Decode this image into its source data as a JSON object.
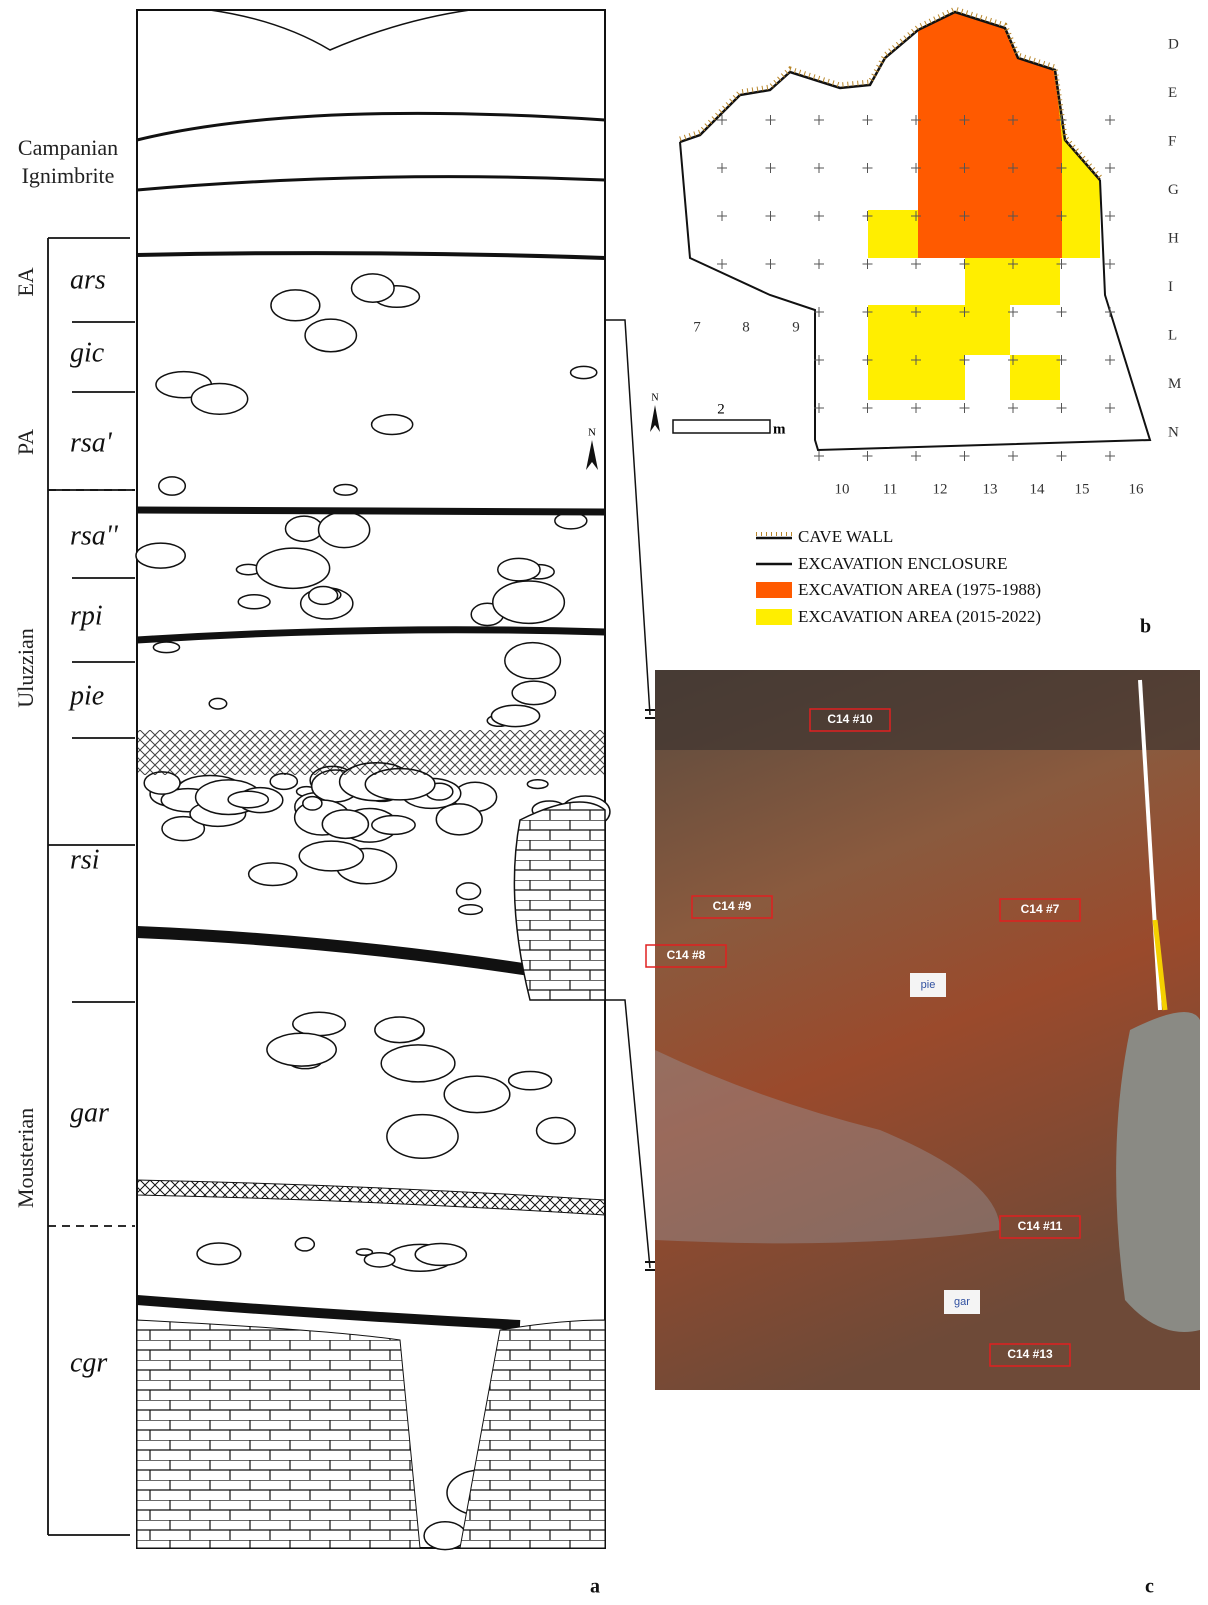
{
  "stratigraphy": {
    "panel_label": "a",
    "cultures": [
      "Campanian Ignimbrite",
      "EA",
      "PA",
      "Uluzzian",
      "Mousterian"
    ],
    "layers": [
      "ars",
      "gic",
      "rsa'",
      "rsa''",
      "rpi",
      "pie",
      "rsi",
      "gar",
      "cgr"
    ],
    "north": "N"
  },
  "map": {
    "panel_label": "b",
    "rows": [
      "D",
      "E",
      "F",
      "G",
      "H",
      "I",
      "L",
      "M",
      "N"
    ],
    "columns": [
      "7",
      "8",
      "9",
      "10",
      "11",
      "12",
      "13",
      "14",
      "15",
      "16"
    ],
    "north": "N",
    "scale": "2",
    "scale_unit": "m",
    "legend": [
      "CAVE WALL",
      "EXCAVATION ENCLOSURE",
      "EXCAVATION AREA  (1975-1988)",
      "EXCAVATION AREA  (2015-2022)"
    ]
  },
  "photo": {
    "panel_label": "c",
    "samples": [
      "C14 #10",
      "C14 #9",
      "C14 #7",
      "C14 #8",
      "C14 #11",
      "C14 #13"
    ],
    "tags": [
      "pie",
      "gar"
    ]
  }
}
